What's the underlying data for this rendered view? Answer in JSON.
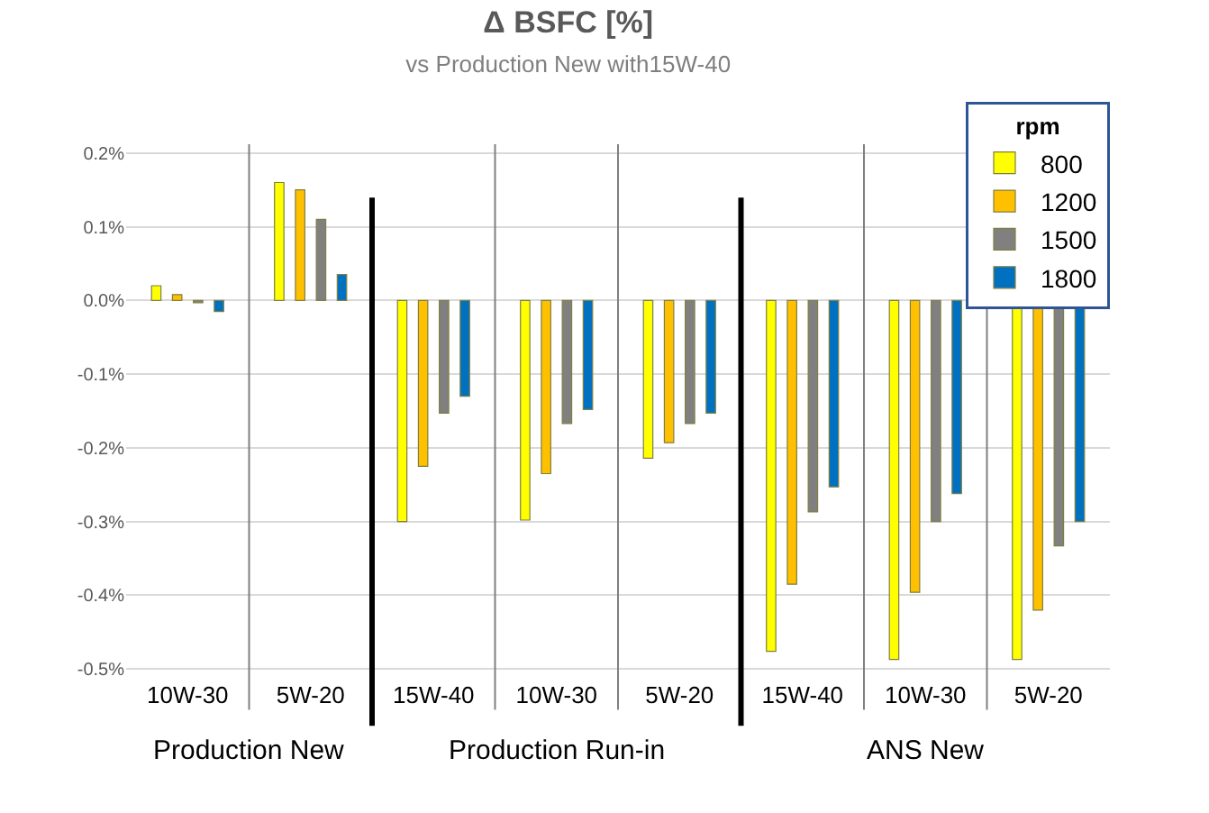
{
  "chart_data": {
    "type": "bar",
    "title": "Δ BSFC [%]",
    "subtitle": "vs Production New with15W-40",
    "categories": [
      "10W-30",
      "5W-20",
      "15W-40",
      "10W-30",
      "5W-20",
      "15W-40",
      "10W-30",
      "5W-20"
    ],
    "series": [
      {
        "name": "800",
        "color": "#ffff00",
        "values": [
          0.02,
          0.16,
          -0.3,
          -0.298,
          -0.214,
          -0.476,
          -0.487,
          -0.487
        ]
      },
      {
        "name": "1200",
        "color": "#ffc000",
        "values": [
          0.008,
          0.15,
          -0.225,
          -0.235,
          -0.193,
          -0.385,
          -0.396,
          -0.42
        ]
      },
      {
        "name": "1500",
        "color": "#808080",
        "values": [
          -0.003,
          0.11,
          -0.153,
          -0.167,
          -0.167,
          -0.287,
          -0.3,
          -0.333
        ]
      },
      {
        "name": "1800",
        "color": "#0070c0",
        "values": [
          -0.015,
          0.035,
          -0.13,
          -0.148,
          -0.153,
          -0.253,
          -0.262,
          -0.3
        ]
      }
    ],
    "legend_title": "rpm",
    "legend": "top right",
    "annotations": [
      "Production New",
      "Production Run-in",
      "ANS New"
    ],
    "ylim": [
      -0.5,
      0.2
    ],
    "yticks": [
      {
        "value": 0.2,
        "label": "0.2%"
      },
      {
        "value": 0.1,
        "label": "0.1%"
      },
      {
        "value": 0.0,
        "label": "0.0%"
      },
      {
        "value": -0.1,
        "label": "-0.1%"
      },
      {
        "value": -0.2,
        "label": "-0.2%"
      },
      {
        "value": -0.3,
        "label": "-0.3%"
      },
      {
        "value": -0.4,
        "label": "-0.4%"
      },
      {
        "value": -0.5,
        "label": "-0.5%"
      }
    ],
    "grid": "y"
  }
}
